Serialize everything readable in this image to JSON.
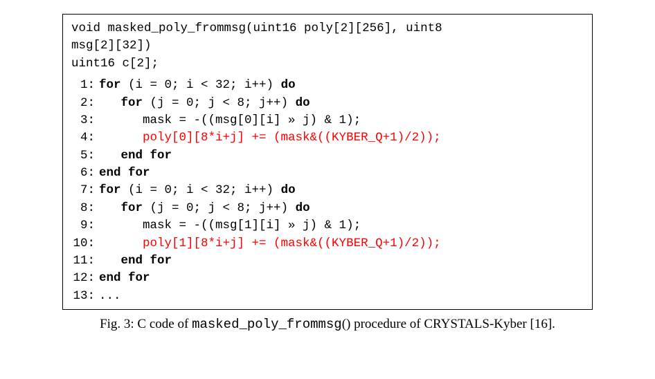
{
  "codebox": {
    "border_color": "#000000",
    "background_color": "#ffffff",
    "font_family": "Courier New",
    "font_size_pt": 13,
    "signature": {
      "line1_head": "void masked_poly_frommsg(uint16 poly[2][256], uint8",
      "line2": "msg[2][32])",
      "line3": "uint16 c[2];"
    },
    "red_color": "#ff0000",
    "lines": [
      {
        "n": "1:",
        "indent": 0,
        "segments": [
          {
            "t": "for",
            "kw": true
          },
          {
            "t": " (i = 0; i < 32; i++) "
          },
          {
            "t": "do",
            "kw": true
          }
        ]
      },
      {
        "n": "2:",
        "indent": 1,
        "segments": [
          {
            "t": "for",
            "kw": true
          },
          {
            "t": " (j = 0; j < 8; j++) "
          },
          {
            "t": "do",
            "kw": true
          }
        ]
      },
      {
        "n": "3:",
        "indent": 2,
        "segments": [
          {
            "t": "mask = -((msg[0][i] » j) & 1);"
          }
        ]
      },
      {
        "n": "4:",
        "indent": 2,
        "segments": [
          {
            "t": "poly[0][8*i+j] += (mask&((KYBER_Q+1)/2));",
            "red": true
          }
        ]
      },
      {
        "n": "5:",
        "indent": 1,
        "segments": [
          {
            "t": "end for",
            "kw": true
          }
        ]
      },
      {
        "n": "6:",
        "indent": 0,
        "segments": [
          {
            "t": "end for",
            "kw": true
          }
        ]
      },
      {
        "n": "7:",
        "indent": 0,
        "segments": [
          {
            "t": "for",
            "kw": true
          },
          {
            "t": " (i = 0; i < 32; i++) "
          },
          {
            "t": "do",
            "kw": true
          }
        ]
      },
      {
        "n": "8:",
        "indent": 1,
        "segments": [
          {
            "t": "for",
            "kw": true
          },
          {
            "t": " (j = 0; j < 8; j++) "
          },
          {
            "t": "do",
            "kw": true
          }
        ]
      },
      {
        "n": "9:",
        "indent": 2,
        "segments": [
          {
            "t": "mask = -((msg[1][i] » j) & 1);"
          }
        ]
      },
      {
        "n": "10:",
        "indent": 2,
        "segments": [
          {
            "t": "poly[1][8*i+j] += (mask&((KYBER_Q+1)/2));",
            "red": true
          }
        ]
      },
      {
        "n": "11:",
        "indent": 1,
        "segments": [
          {
            "t": "end for",
            "kw": true
          }
        ]
      },
      {
        "n": "12:",
        "indent": 0,
        "segments": [
          {
            "t": "end for",
            "kw": true
          }
        ]
      },
      {
        "n": "13:",
        "indent": 0,
        "segments": [
          {
            "t": "..."
          }
        ]
      }
    ]
  },
  "caption": {
    "prefix": "Fig. 3: C code of ",
    "funcname": "masked_poly_frommsg",
    "suffix": "() procedure of CRYSTALS-Kyber [16].",
    "font_size_pt": 14
  }
}
